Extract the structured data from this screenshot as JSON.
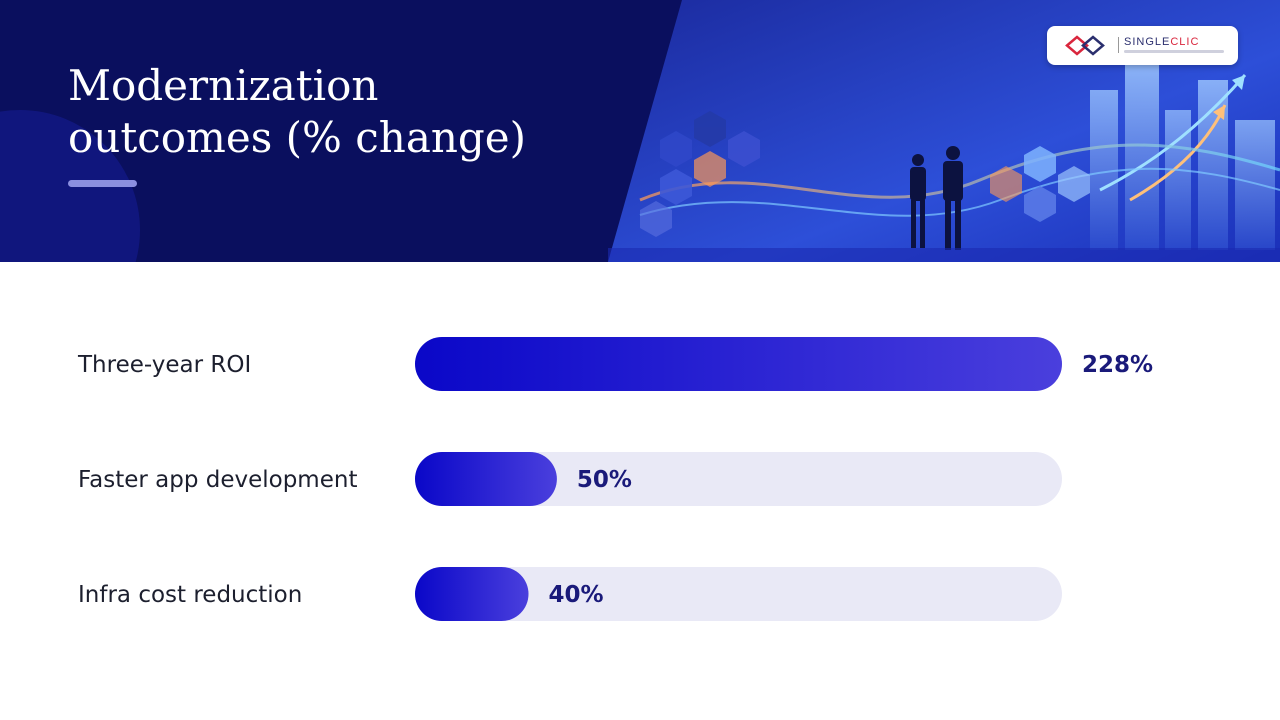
{
  "slide": {
    "title_line1": "Modernization",
    "title_line2": "outcomes (% change)",
    "logo": {
      "name_part1": "SINGLE",
      "name_part2": "CLIC"
    }
  },
  "colors": {
    "header_bg": "#0a0f5e",
    "bar_start": "#0a07c8",
    "bar_end": "#4a3fdd",
    "track": "#e9e9f6",
    "label": "#1c1f2e",
    "value": "#1a1a7a"
  },
  "chart_data": {
    "type": "bar",
    "orientation": "horizontal",
    "title": "Modernization outcomes (% change)",
    "categories": [
      "Three-year ROI",
      "Faster app development",
      "Infra cost reduction"
    ],
    "values": [
      228,
      50,
      40
    ],
    "value_labels": [
      "228%",
      "50%",
      "40%"
    ],
    "xlim": [
      0,
      228
    ],
    "grid": false,
    "legend": "none"
  }
}
